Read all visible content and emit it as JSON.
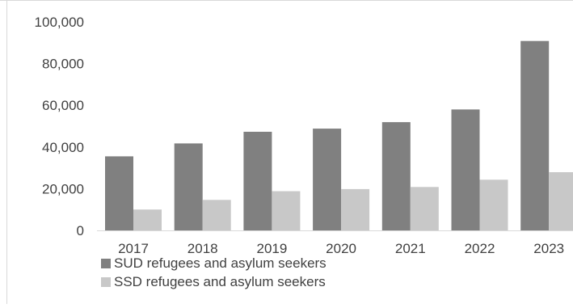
{
  "chart_data": {
    "type": "bar",
    "categories": [
      "2017",
      "2018",
      "2019",
      "2020",
      "2021",
      "2022",
      "2023"
    ],
    "series": [
      {
        "name": "SUD refugees and asylum seekers",
        "values": [
          35500,
          41700,
          47300,
          48800,
          51900,
          58000,
          90800
        ],
        "color": "#808080"
      },
      {
        "name": "SSD refugees and asylum seekers",
        "values": [
          10000,
          14600,
          18800,
          19800,
          20800,
          24300,
          27900
        ],
        "color": "#c8c8c8"
      }
    ],
    "ylim": [
      0,
      100000
    ],
    "yticks": [
      0,
      20000,
      40000,
      60000,
      80000,
      100000
    ],
    "ytick_labels": [
      "0",
      "20,000",
      "40,000",
      "60,000",
      "80,000",
      "100,000"
    ],
    "grid": false,
    "legend_position": "bottom-left",
    "title": "",
    "xlabel": "",
    "ylabel": ""
  }
}
